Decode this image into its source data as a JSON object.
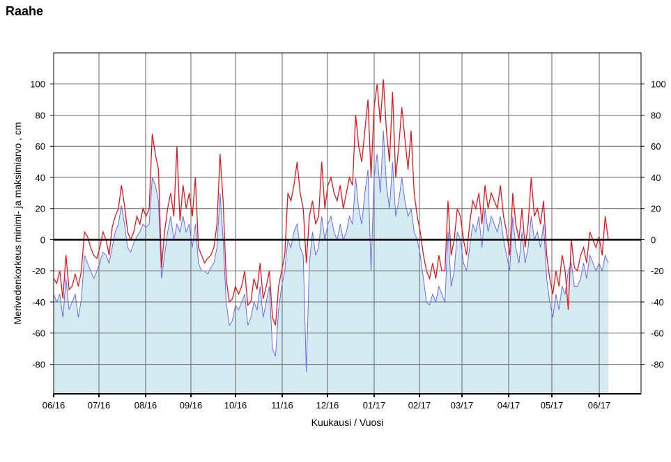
{
  "page": {
    "station": "Raahe"
  },
  "chart_data": {
    "type": "line",
    "title": "Raahe",
    "xlabel": "Kuukausi / Vuosi",
    "ylabel": "Merivedenkorkeus minimi- ja maksimiarvo , cm",
    "x_tick_labels": [
      "06/16",
      "07/16",
      "08/16",
      "09/16",
      "10/16",
      "11/16",
      "12/16",
      "01/17",
      "02/17",
      "03/17",
      "04/17",
      "05/17",
      "06/17"
    ],
    "y_ticks": [
      -80,
      -60,
      -40,
      -20,
      0,
      20,
      40,
      60,
      80,
      100
    ],
    "ylim": [
      -99,
      120
    ],
    "grid": true,
    "colors": {
      "max_line": "#e8141c",
      "min_line": "#6b6bf0",
      "min_fill": "#d4ebf1",
      "zero_line": "#000000"
    },
    "series": [
      {
        "role": "max",
        "values": [
          -25,
          -28,
          -20,
          -38,
          -10,
          -32,
          -30,
          -22,
          -30,
          -20,
          5,
          2,
          -5,
          -10,
          -12,
          -5,
          5,
          0,
          -10,
          8,
          15,
          20,
          35,
          22,
          5,
          0,
          5,
          15,
          10,
          20,
          15,
          20,
          68,
          55,
          45,
          -18,
          5,
          20,
          30,
          15,
          60,
          12,
          35,
          20,
          30,
          15,
          40,
          -5,
          -10,
          -15,
          -12,
          -10,
          -5,
          10,
          55,
          25,
          -25,
          -40,
          -38,
          -30,
          -35,
          -30,
          -20,
          -42,
          -40,
          -25,
          -32,
          -15,
          -38,
          -30,
          -20,
          -50,
          -55,
          -30,
          -20,
          -10,
          30,
          25,
          35,
          50,
          30,
          20,
          -15,
          15,
          25,
          10,
          15,
          50,
          20,
          35,
          40,
          30,
          25,
          35,
          20,
          30,
          40,
          35,
          80,
          60,
          50,
          70,
          90,
          40,
          85,
          100,
          75,
          103,
          70,
          50,
          95,
          40,
          60,
          85,
          65,
          45,
          70,
          30,
          15,
          5,
          -10,
          -20,
          -25,
          -15,
          -25,
          -10,
          -20,
          -20,
          25,
          -10,
          0,
          20,
          15,
          0,
          -10,
          10,
          25,
          20,
          30,
          10,
          35,
          20,
          30,
          25,
          20,
          35,
          15,
          5,
          -10,
          30,
          10,
          0,
          20,
          -5,
          10,
          40,
          15,
          20,
          10,
          25,
          -10,
          -25,
          -35,
          -20,
          -30,
          -10,
          -20,
          -45,
          0,
          -18,
          -20,
          -10,
          -5,
          -15,
          5,
          0,
          -5,
          2,
          -10,
          15,
          0
        ]
      },
      {
        "role": "min",
        "values": [
          -35,
          -40,
          -35,
          -50,
          -25,
          -45,
          -40,
          -35,
          -50,
          -38,
          -10,
          -15,
          -20,
          -25,
          -20,
          -15,
          -8,
          -10,
          -15,
          -5,
          5,
          10,
          22,
          10,
          -5,
          -8,
          -2,
          2,
          5,
          10,
          8,
          10,
          40,
          35,
          25,
          -25,
          -10,
          5,
          15,
          0,
          10,
          5,
          15,
          5,
          10,
          -5,
          10,
          -15,
          -20,
          -20,
          -22,
          -18,
          -15,
          -5,
          30,
          0,
          -40,
          -55,
          -52,
          -42,
          -45,
          -40,
          -35,
          -55,
          -50,
          -40,
          -45,
          -30,
          -50,
          -40,
          -30,
          -70,
          -75,
          -45,
          -30,
          -20,
          0,
          -5,
          5,
          10,
          -5,
          -10,
          -85,
          -15,
          5,
          -10,
          -5,
          15,
          0,
          10,
          15,
          5,
          0,
          10,
          0,
          5,
          15,
          10,
          40,
          20,
          10,
          30,
          45,
          -20,
          40,
          55,
          30,
          70,
          35,
          20,
          50,
          15,
          25,
          40,
          25,
          15,
          20,
          5,
          0,
          -10,
          -25,
          -40,
          -42,
          -35,
          -40,
          -30,
          -35,
          -40,
          5,
          -30,
          -20,
          5,
          0,
          -15,
          -20,
          -5,
          10,
          5,
          15,
          -5,
          20,
          5,
          15,
          10,
          5,
          15,
          0,
          -10,
          -20,
          15,
          -5,
          -15,
          5,
          -15,
          -5,
          15,
          0,
          5,
          -5,
          10,
          -25,
          -40,
          -50,
          -35,
          -45,
          -30,
          -35,
          -20,
          -15,
          -30,
          -30,
          -25,
          -15,
          -25,
          -10,
          -15,
          -20,
          -15,
          -20,
          -10,
          -15
        ]
      }
    ]
  }
}
